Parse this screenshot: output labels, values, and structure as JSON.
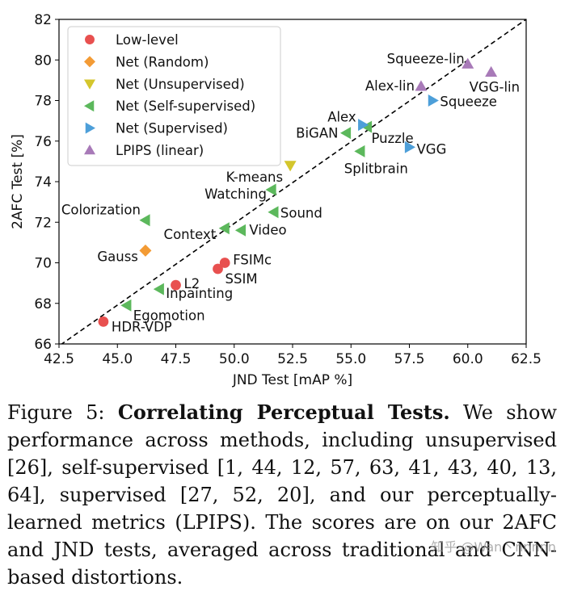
{
  "chart_data": {
    "type": "scatter",
    "xlabel": "JND Test [mAP %]",
    "ylabel": "2AFC Test [%]",
    "xlim": [
      42.5,
      62.5
    ],
    "ylim": [
      66,
      82
    ],
    "xticks": [
      42.5,
      45.0,
      47.5,
      50.0,
      52.5,
      55.0,
      57.5,
      60.0,
      62.5
    ],
    "xtick_labels": [
      "42.5",
      "45.0",
      "47.5",
      "50.0",
      "52.5",
      "55.0",
      "57.5",
      "60.0",
      "62.5"
    ],
    "yticks": [
      66,
      68,
      70,
      72,
      74,
      76,
      78,
      80,
      82
    ],
    "ytick_labels": [
      "66",
      "68",
      "70",
      "72",
      "74",
      "76",
      "78",
      "80",
      "82"
    ],
    "grid": false,
    "legend_position": "top-left",
    "reference_line": {
      "style": "dashed",
      "from": [
        42.0,
        65.5
      ],
      "to": [
        62.5,
        82.0
      ]
    },
    "series": [
      {
        "name": "Low-level",
        "marker": "circle",
        "color": "#e8504f",
        "points": [
          {
            "label": "HDR-VDP",
            "x": 44.4,
            "y": 67.1
          },
          {
            "label": "L2",
            "x": 47.5,
            "y": 68.9
          },
          {
            "label": "SSIM",
            "x": 49.3,
            "y": 69.7
          },
          {
            "label": "FSIMc",
            "x": 49.6,
            "y": 70.0
          }
        ]
      },
      {
        "name": "Net (Random)",
        "marker": "diamond",
        "color": "#f39b35",
        "points": [
          {
            "label": "Gauss",
            "x": 46.2,
            "y": 70.6
          }
        ]
      },
      {
        "name": "Net (Unsupervised)",
        "marker": "triangle-down",
        "color": "#d4c62c",
        "points": [
          {
            "label": "K-means",
            "x": 52.4,
            "y": 74.8
          }
        ]
      },
      {
        "name": "Net (Self-supervised)",
        "marker": "triangle-left",
        "color": "#5cb85c",
        "points": [
          {
            "label": "Egomotion",
            "x": 45.4,
            "y": 67.9
          },
          {
            "label": "Inpainting",
            "x": 46.8,
            "y": 68.7
          },
          {
            "label": "Colorization",
            "x": 46.2,
            "y": 72.1
          },
          {
            "label": "Context",
            "x": 49.6,
            "y": 71.7
          },
          {
            "label": "Video",
            "x": 50.3,
            "y": 71.6
          },
          {
            "label": "Sound",
            "x": 51.7,
            "y": 72.5
          },
          {
            "label": "Watching",
            "x": 51.6,
            "y": 73.6
          },
          {
            "label": "BiGAN",
            "x": 54.8,
            "y": 76.4
          },
          {
            "label": "Splitbrain",
            "x": 55.4,
            "y": 75.5
          },
          {
            "label": "Puzzle",
            "x": 55.7,
            "y": 76.7
          }
        ]
      },
      {
        "name": "Net (Supervised)",
        "marker": "triangle-right",
        "color": "#4d9fd9",
        "points": [
          {
            "label": "Alex",
            "x": 55.5,
            "y": 76.8
          },
          {
            "label": "VGG",
            "x": 57.5,
            "y": 75.7
          },
          {
            "label": "Squeeze",
            "x": 58.5,
            "y": 78.0
          }
        ]
      },
      {
        "name": "LPIPS (linear)",
        "marker": "triangle-up",
        "color": "#a87ab8",
        "points": [
          {
            "label": "Alex-lin",
            "x": 58.0,
            "y": 78.7
          },
          {
            "label": "Squeeze-lin",
            "x": 60.0,
            "y": 79.8
          },
          {
            "label": "VGG-lin",
            "x": 61.0,
            "y": 79.4
          }
        ]
      }
    ]
  },
  "caption": {
    "prefix": "Figure 5: ",
    "title": "Correlating Perceptual Tests.",
    "body": " We show performance across methods, including unsupervised [26], self-supervised [1, 44, 12, 57, 63, 41, 43, 40, 13, 64], supervised [27, 52, 20], and our perceptually-learned metrics (LPIPS). The scores are on our 2AFC and JND tests, averaged across traditional and CNN-based distortions."
  },
  "watermark": "知乎 @Wan丶nnnnn"
}
